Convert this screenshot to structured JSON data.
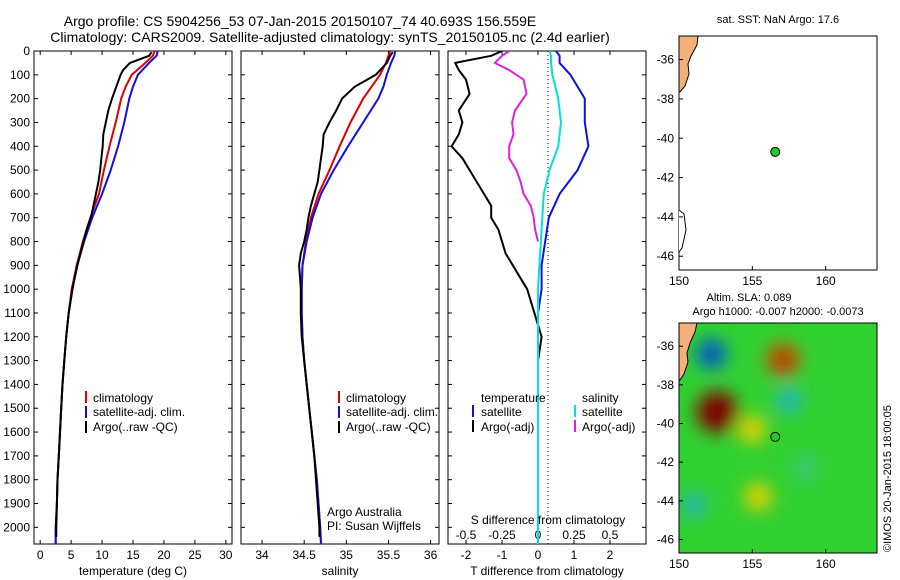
{
  "header": {
    "title_line1": "Argo profile: CS 5904256_53 07-Jan-2015 20150107_74 40.693S 156.559E",
    "title_line2": "Climatology: CARS2009. Satellite-adjusted climatology: synTS_20150105.nc (2.4d earlier)"
  },
  "colors": {
    "climatology": "#e00000",
    "satellite": "#1010e0",
    "argo": "#000000",
    "salinity_sat": "#00e0e0",
    "salinity_argo": "#e020e0"
  },
  "chart_data": [
    {
      "id": "temperature",
      "type": "line",
      "xlabel": "temperature (deg C)",
      "xlim": [
        -1,
        31
      ],
      "xticks": [
        0,
        5,
        10,
        15,
        20,
        25,
        30
      ],
      "ylim": [
        2070,
        0
      ],
      "yticks": [
        0,
        100,
        200,
        300,
        400,
        500,
        600,
        700,
        800,
        900,
        1000,
        1100,
        1200,
        1300,
        1400,
        1500,
        1600,
        1700,
        1800,
        1900,
        2000
      ],
      "legend": [
        "climatology",
        "satellite-adj. clim.",
        "Argo(..raw -QC)"
      ],
      "series": [
        {
          "name": "climatology",
          "color": "#e00000",
          "depth": [
            0,
            20,
            50,
            100,
            150,
            200,
            300,
            400,
            500,
            600,
            700,
            800,
            900,
            1000,
            1100,
            1200,
            1300,
            1400,
            1500,
            1600,
            1700,
            1800,
            1900,
            2000,
            2070
          ],
          "values": [
            18.5,
            18.2,
            17.0,
            14.8,
            13.8,
            13.1,
            12.2,
            11.2,
            10.3,
            9.5,
            8.1,
            6.9,
            5.9,
            5.1,
            4.6,
            4.2,
            3.9,
            3.6,
            3.4,
            3.2,
            3.0,
            2.8,
            2.7,
            2.5,
            2.5
          ]
        },
        {
          "name": "satellite-adj. clim.",
          "color": "#1010e0",
          "depth": [
            0,
            20,
            50,
            100,
            150,
            200,
            300,
            400,
            500,
            600,
            700,
            800,
            900,
            1000,
            1100,
            1200,
            1300,
            1400,
            1500,
            1600,
            1700,
            1800,
            1900,
            2000,
            2070
          ],
          "values": [
            19.0,
            18.8,
            17.6,
            15.8,
            15.0,
            14.4,
            13.6,
            12.6,
            11.4,
            10.0,
            8.4,
            7.1,
            6.0,
            5.2,
            4.6,
            4.2,
            3.9,
            3.6,
            3.4,
            3.2,
            3.0,
            2.8,
            2.7,
            2.5,
            2.5
          ]
        },
        {
          "name": "Argo(..raw -QC)",
          "color": "#000000",
          "depth": [
            5,
            20,
            50,
            80,
            100,
            150,
            200,
            250,
            300,
            350,
            400,
            450,
            500,
            550,
            600,
            650,
            700,
            750,
            800,
            850,
            900,
            950,
            1000,
            1100,
            1200,
            1300,
            1400,
            1500,
            1600,
            1700,
            1800,
            1900,
            2000,
            2040
          ],
          "values": [
            18.0,
            17.6,
            14.5,
            13.4,
            13.0,
            12.3,
            11.6,
            11.0,
            10.6,
            10.2,
            10.1,
            9.9,
            9.7,
            9.4,
            9.0,
            8.6,
            8.2,
            7.5,
            7.0,
            6.5,
            6.0,
            5.6,
            5.2,
            4.6,
            4.2,
            3.9,
            3.6,
            3.4,
            3.2,
            3.0,
            2.8,
            2.7,
            2.6,
            2.6
          ]
        }
      ]
    },
    {
      "id": "salinity",
      "type": "line",
      "xlabel": "salinity",
      "xlim": [
        33.75,
        36.1
      ],
      "xticks": [
        34,
        34.5,
        35,
        35.5,
        36
      ],
      "ylim": [
        2070,
        0
      ],
      "legend": [
        "climatology",
        "satellite-adj. clim.",
        "Argo(..raw -QC)"
      ],
      "annotation": [
        "Argo Australia",
        "PI: Susan Wijffels"
      ],
      "series": [
        {
          "name": "climatology",
          "color": "#e00000",
          "depth": [
            0,
            20,
            50,
            100,
            150,
            200,
            300,
            400,
            500,
            600,
            700,
            800,
            900,
            1000,
            1100,
            1200,
            1300,
            1400,
            1500,
            1600,
            1700,
            1800,
            1900,
            2000,
            2070
          ],
          "values": [
            35.52,
            35.5,
            35.47,
            35.4,
            35.3,
            35.2,
            35.05,
            34.92,
            34.8,
            34.67,
            34.58,
            34.52,
            34.48,
            34.47,
            34.47,
            34.48,
            34.5,
            34.53,
            34.56,
            34.59,
            34.62,
            34.65,
            34.67,
            34.69,
            34.7
          ]
        },
        {
          "name": "satellite-adj. clim.",
          "color": "#1010e0",
          "depth": [
            0,
            20,
            50,
            100,
            150,
            200,
            300,
            400,
            500,
            600,
            700,
            800,
            900,
            1000,
            1100,
            1200,
            1300,
            1400,
            1500,
            1600,
            1700,
            1800,
            1900,
            2000,
            2070
          ],
          "values": [
            35.58,
            35.57,
            35.53,
            35.48,
            35.44,
            35.38,
            35.2,
            35.02,
            34.85,
            34.7,
            34.6,
            34.53,
            34.48,
            34.47,
            34.47,
            34.48,
            34.5,
            34.53,
            34.56,
            34.59,
            34.62,
            34.65,
            34.67,
            34.69,
            34.7
          ]
        },
        {
          "name": "Argo(..raw -QC)",
          "color": "#000000",
          "depth": [
            5,
            20,
            50,
            100,
            150,
            200,
            250,
            300,
            350,
            400,
            450,
            500,
            550,
            600,
            650,
            700,
            750,
            800,
            850,
            900,
            950,
            1000,
            1100,
            1200,
            1300,
            1400,
            1500,
            1600,
            1700,
            1800,
            1900,
            2000,
            2040
          ],
          "values": [
            35.55,
            35.52,
            35.48,
            35.35,
            35.1,
            34.95,
            34.88,
            34.8,
            34.73,
            34.72,
            34.7,
            34.68,
            34.66,
            34.62,
            34.58,
            34.55,
            34.53,
            34.5,
            34.46,
            34.44,
            34.45,
            34.46,
            34.46,
            34.47,
            34.5,
            34.53,
            34.56,
            34.59,
            34.62,
            34.64,
            34.66,
            34.68,
            34.68
          ]
        }
      ]
    },
    {
      "id": "difference",
      "type": "line",
      "xlabel": "T difference from climatology",
      "xlabel_top": "S difference from climatology",
      "xlim": [
        -2.5,
        3.0
      ],
      "xticks": [
        -2,
        -1,
        0,
        1,
        2
      ],
      "xticks_s": [
        "-0.5",
        "-0.25",
        "0",
        "0.25",
        "0.5"
      ],
      "ylim": [
        2070,
        0
      ],
      "legend_temperature_title": "temperature",
      "legend_salinity_title": "salinity",
      "legend": [
        "satellite",
        "Argo(-adj)",
        "satellite",
        "Argo(-adj)"
      ],
      "series": [
        {
          "name": "T satellite",
          "color": "#1010e0",
          "depth": [
            0,
            20,
            50,
            100,
            150,
            200,
            300,
            400,
            500,
            600,
            700,
            800,
            900,
            1000,
            1100,
            1200,
            1300,
            1400,
            1500,
            1600,
            1700,
            1800,
            1900,
            2000,
            2070
          ],
          "values": [
            0.5,
            0.6,
            0.6,
            0.9,
            1.1,
            1.3,
            1.3,
            1.4,
            1.1,
            0.6,
            0.3,
            0.2,
            0.1,
            0.1,
            0.0,
            0.0,
            0.0,
            0.0,
            0.0,
            0.0,
            0.0,
            0.0,
            0.0,
            0.0,
            0.0
          ]
        },
        {
          "name": "T Argo(-adj)",
          "color": "#000000",
          "depth": [
            0,
            20,
            50,
            80,
            120,
            180,
            250,
            300,
            350,
            400,
            450,
            500,
            550,
            600,
            650,
            700,
            750,
            800,
            850,
            900,
            950,
            1000,
            1050,
            1100,
            1150,
            1200,
            1300,
            1400,
            1600,
            1800,
            2000,
            2040
          ],
          "values": [
            -1.0,
            -1.3,
            -2.3,
            -2.2,
            -2.0,
            -1.9,
            -2.2,
            -2.1,
            -2.2,
            -2.4,
            -2.1,
            -1.9,
            -1.7,
            -1.5,
            -1.3,
            -1.3,
            -1.1,
            -1.0,
            -0.9,
            -0.7,
            -0.5,
            -0.3,
            -0.2,
            -0.1,
            0.0,
            0.1,
            0.0,
            0.0,
            0.0,
            0.0,
            0.0,
            0.0
          ]
        },
        {
          "name": "S satellite",
          "color": "#00e0e0",
          "depth": [
            0,
            20,
            50,
            100,
            150,
            200,
            300,
            400,
            500,
            600,
            700,
            800,
            900,
            1000,
            1100,
            1200,
            1300,
            1400,
            1500,
            1600,
            1700,
            1800,
            1900,
            2000,
            2070
          ],
          "values": [
            0.08,
            0.09,
            0.09,
            0.1,
            0.12,
            0.14,
            0.16,
            0.14,
            0.08,
            0.04,
            0.03,
            0.02,
            0.01,
            0.0,
            0.0,
            0.0,
            0.0,
            0.0,
            0.0,
            0.0,
            0.0,
            0.0,
            0.0,
            0.0,
            0.0
          ]
        },
        {
          "name": "S Argo(-adj)",
          "color": "#e020e0",
          "depth": [
            0,
            20,
            50,
            80,
            120,
            180,
            250,
            300,
            350,
            400,
            450,
            500,
            550,
            600,
            650,
            700,
            750,
            800
          ],
          "values": [
            -0.2,
            -0.25,
            -0.3,
            -0.2,
            -0.1,
            -0.08,
            -0.16,
            -0.18,
            -0.17,
            -0.2,
            -0.2,
            -0.15,
            -0.12,
            -0.1,
            -0.05,
            -0.03,
            -0.02,
            0.0
          ]
        }
      ]
    },
    {
      "id": "sst_map",
      "type": "heatmap",
      "title": "sat. SST: NaN  Argo: 17.6",
      "xlim": [
        150,
        163.5
      ],
      "ylim": [
        -46.7,
        -34.8
      ],
      "xticks": [
        150,
        155,
        160
      ],
      "yticks": [
        -36,
        -38,
        -40,
        -42,
        -44,
        -46
      ],
      "argo_position": {
        "lon": 156.559,
        "lat": -40.693
      }
    },
    {
      "id": "sla_map",
      "type": "heatmap",
      "title_line1": "Altim. SLA: 0.089",
      "title_line2": "Argo h1000: -0.007 h2000: -0.0073",
      "xlim": [
        150,
        163.5
      ],
      "ylim": [
        -46.7,
        -34.8
      ],
      "xticks": [
        150,
        155,
        160
      ],
      "yticks": [
        -36,
        -38,
        -40,
        -42,
        -44,
        -46
      ],
      "argo_position": {
        "lon": 156.559,
        "lat": -40.693
      },
      "anomalies": [
        {
          "lon": 152.2,
          "lat": -36.4,
          "value": -0.5
        },
        {
          "lon": 152.6,
          "lat": -39.4,
          "value": 0.9
        },
        {
          "lon": 157.1,
          "lat": -36.7,
          "value": 0.6
        },
        {
          "lon": 157.5,
          "lat": -38.8,
          "value": -0.3
        },
        {
          "lon": 155.0,
          "lat": -40.3,
          "value": 0.4
        },
        {
          "lon": 155.4,
          "lat": -43.8,
          "value": 0.4
        },
        {
          "lon": 151.0,
          "lat": -44.2,
          "value": -0.25
        },
        {
          "lon": 158.6,
          "lat": -42.3,
          "value": -0.15
        }
      ]
    }
  ],
  "footer": {
    "credit": "©IMOS 20-Jan-2015 18:00:05"
  }
}
